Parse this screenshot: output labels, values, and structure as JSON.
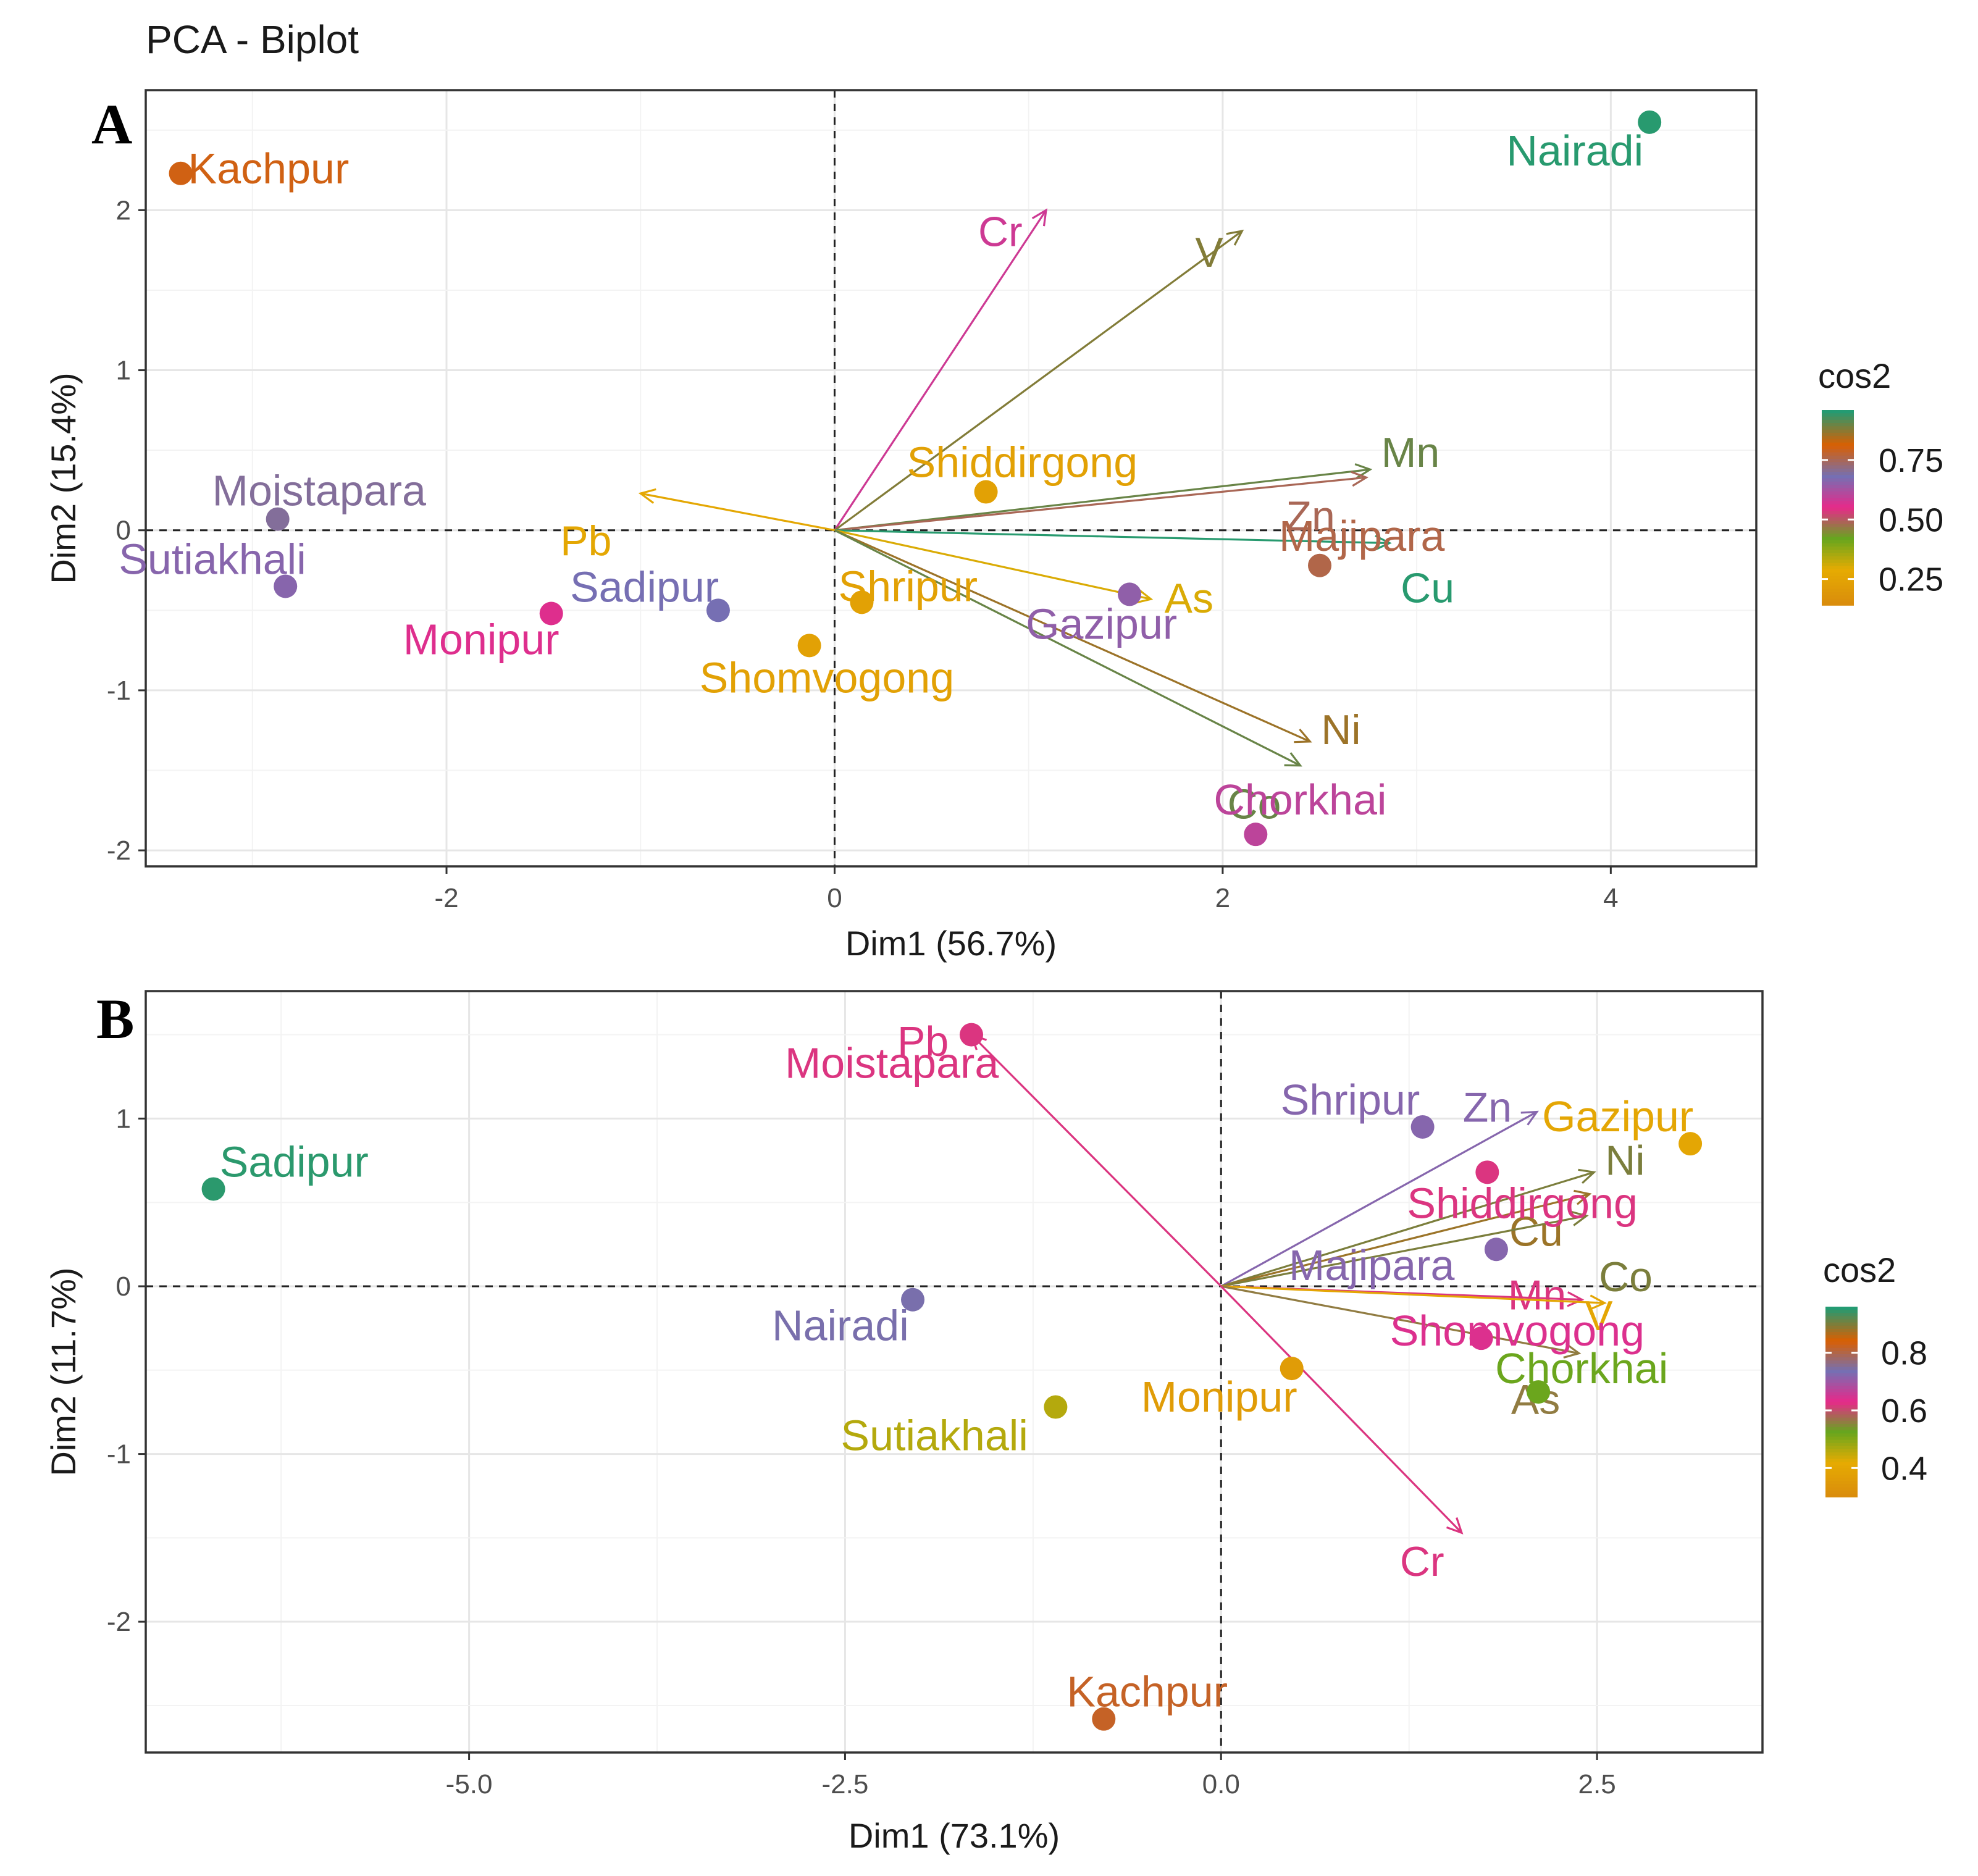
{
  "figure_title": "PCA - Biplot",
  "chart_data": [
    {
      "panel_label": "A",
      "type": "scatter",
      "title": "PCA - Biplot",
      "xlabel": "Dim1 (56.7%)",
      "ylabel": "Dim2 (15.4%)",
      "xlim": [
        -3.55,
        4.75
      ],
      "ylim": [
        -2.1,
        2.75
      ],
      "xticks": [
        -2,
        0,
        2,
        4
      ],
      "xtick_labels": [
        "-2",
        "0",
        "2",
        "4"
      ],
      "yticks": [
        -2,
        -1,
        0,
        1,
        2
      ],
      "ytick_labels": [
        "-2",
        "-1",
        "0",
        "1",
        "2"
      ],
      "grid": true,
      "legend": {
        "title": "cos2",
        "placement": "right",
        "ticks": [
          0.75,
          0.5,
          0.25
        ],
        "tick_labels": [
          "0.75",
          "0.50",
          "0.25"
        ],
        "range": [
          0.14,
          0.96
        ]
      },
      "individuals": [
        {
          "name": "Kachpur",
          "x": -3.37,
          "y": 2.23,
          "cos2": 0.8
        },
        {
          "name": "Nairadi",
          "x": 4.2,
          "y": 2.55,
          "cos2": 0.95
        },
        {
          "name": "Moistapara",
          "x": -2.87,
          "y": 0.07,
          "cos2": 0.7
        },
        {
          "name": "Sutiakhali",
          "x": -2.83,
          "y": -0.35,
          "cos2": 0.66
        },
        {
          "name": "Monipur",
          "x": -1.46,
          "y": -0.52,
          "cos2": 0.56
        },
        {
          "name": "Sadipur",
          "x": -0.6,
          "y": -0.5,
          "cos2": 0.68
        },
        {
          "name": "Shomvogong",
          "x": -0.13,
          "y": -0.72,
          "cos2": 0.24
        },
        {
          "name": "Shripur",
          "x": 0.14,
          "y": -0.45,
          "cos2": 0.24
        },
        {
          "name": "Shiddirgong",
          "x": 0.78,
          "y": 0.24,
          "cos2": 0.24
        },
        {
          "name": "Gazipur",
          "x": 1.52,
          "y": -0.4,
          "cos2": 0.65
        },
        {
          "name": "Majipara",
          "x": 2.5,
          "y": -0.22,
          "cos2": 0.76
        },
        {
          "name": "Chorkhai",
          "x": 2.17,
          "y": -1.9,
          "cos2": 0.6
        }
      ],
      "variables": [
        {
          "name": "Cr",
          "x": 1.09,
          "y": 2.0,
          "cos2": 0.58
        },
        {
          "name": "V",
          "x": 2.1,
          "y": 1.87,
          "cos2": 0.88
        },
        {
          "name": "Mn",
          "x": 2.76,
          "y": 0.38,
          "cos2": 0.9
        },
        {
          "name": "Zn",
          "x": 2.74,
          "y": 0.33,
          "cos2": 0.75
        },
        {
          "name": "Cu",
          "x": 2.86,
          "y": -0.08,
          "cos2": 0.95
        },
        {
          "name": "As",
          "x": 1.63,
          "y": -0.43,
          "cos2": 0.3
        },
        {
          "name": "Ni",
          "x": 2.45,
          "y": -1.32,
          "cos2": 0.86
        },
        {
          "name": "Co",
          "x": 2.4,
          "y": -1.47,
          "cos2": 0.9
        },
        {
          "name": "Pb",
          "x": -1.0,
          "y": 0.23,
          "cos2": 0.27
        }
      ]
    },
    {
      "panel_label": "B",
      "type": "scatter",
      "title": "",
      "xlabel": "Dim1 (73.1%)",
      "ylabel": "Dim2 (11.7%)",
      "xlim": [
        -7.15,
        3.6
      ],
      "ylim": [
        -2.78,
        1.76
      ],
      "xticks": [
        -5.0,
        -2.5,
        0.0,
        2.5
      ],
      "xtick_labels": [
        "-5.0",
        "-2.5",
        "0.0",
        "2.5"
      ],
      "yticks": [
        -2,
        -1,
        0,
        1
      ],
      "ytick_labels": [
        "-2",
        "-1",
        "0",
        "1"
      ],
      "grid": true,
      "legend": {
        "title": "cos2",
        "placement": "right",
        "ticks": [
          0.8,
          0.6,
          0.4
        ],
        "tick_labels": [
          "0.8",
          "0.6",
          "0.4"
        ],
        "range": [
          0.3,
          0.96
        ]
      },
      "individuals": [
        {
          "name": "Sadipur",
          "x": -6.7,
          "y": 0.58,
          "cos2": 0.95
        },
        {
          "name": "Moistapara",
          "x": -1.66,
          "y": 1.5,
          "cos2": 0.62
        },
        {
          "name": "Nairadi",
          "x": -2.05,
          "y": -0.08,
          "cos2": 0.74
        },
        {
          "name": "Sutiakhali",
          "x": -1.1,
          "y": -0.72,
          "cos2": 0.46
        },
        {
          "name": "Kachpur",
          "x": -0.78,
          "y": -2.58,
          "cos2": 0.82
        },
        {
          "name": "Monipur",
          "x": 0.47,
          "y": -0.49,
          "cos2": 0.36
        },
        {
          "name": "Shripur",
          "x": 1.34,
          "y": 0.95,
          "cos2": 0.72
        },
        {
          "name": "Gazipur",
          "x": 3.12,
          "y": 0.85,
          "cos2": 0.4
        },
        {
          "name": "Shiddirgong",
          "x": 1.77,
          "y": 0.68,
          "cos2": 0.62
        },
        {
          "name": "Majipara",
          "x": 1.83,
          "y": 0.22,
          "cos2": 0.72
        },
        {
          "name": "Shomvogong",
          "x": 1.73,
          "y": -0.31,
          "cos2": 0.64
        },
        {
          "name": "Chorkhai",
          "x": 2.11,
          "y": -0.63,
          "cos2": 0.52
        }
      ],
      "variables": [
        {
          "name": "Pb",
          "x": -1.66,
          "y": 1.5,
          "cos2": 0.62
        },
        {
          "name": "Zn",
          "x": 2.1,
          "y": 1.04,
          "cos2": 0.72
        },
        {
          "name": "Ni",
          "x": 2.48,
          "y": 0.68,
          "cos2": 0.9
        },
        {
          "name": "Cu",
          "x": 2.45,
          "y": 0.55,
          "cos2": 0.88
        },
        {
          "name": "Co",
          "x": 2.43,
          "y": 0.42,
          "cos2": 0.9
        },
        {
          "name": "Mn",
          "x": 2.4,
          "y": -0.08,
          "cos2": 0.62
        },
        {
          "name": "V",
          "x": 2.55,
          "y": -0.1,
          "cos2": 0.4
        },
        {
          "name": "As",
          "x": 2.38,
          "y": -0.4,
          "cos2": 0.56
        },
        {
          "name": "Cr",
          "x": 1.6,
          "y": -1.47,
          "cos2": 0.62
        }
      ]
    }
  ]
}
